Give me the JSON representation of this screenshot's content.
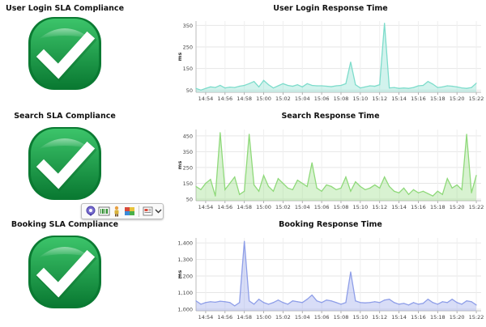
{
  "panels": [
    {
      "sla_title": "User Login SLA Compliance",
      "chart_title": "User Login Response Time",
      "status": "compliant",
      "icon": "checkmark-icon"
    },
    {
      "sla_title": "Search SLA Compliance",
      "chart_title": "Search Response Time",
      "status": "compliant",
      "icon": "checkmark-icon"
    },
    {
      "sla_title": "Booking SLA Compliance",
      "chart_title": "Booking Response Time",
      "status": "compliant",
      "icon": "checkmark-icon"
    }
  ],
  "toolbar": {
    "icons": [
      "map-pin-icon",
      "barcode-icon",
      "person-icon",
      "puzzle-icon",
      "image-settings-icon",
      "chevron-down-icon"
    ]
  },
  "colors": {
    "badge_green": "#12a046",
    "badge_green_dark": "#0a7a32",
    "login_series": "#7ddccb",
    "search_series": "#8fd97a",
    "booking_series": "#8e9ee8"
  },
  "chart_data": [
    {
      "type": "area",
      "ylabel": "ms",
      "ylim": [
        40,
        370
      ],
      "yticks": [
        50,
        150,
        250,
        350
      ],
      "ytick_labels": [
        "50",
        "150",
        "250",
        "350"
      ],
      "xlim": [
        0,
        29.5
      ],
      "xticks": [
        1,
        3,
        5,
        7,
        9,
        11,
        13,
        15,
        17,
        19,
        21,
        23,
        25,
        27,
        29
      ],
      "xtick_labels": [
        "14:54",
        "14:56",
        "14:58",
        "15:00",
        "15:02",
        "15:04",
        "15:06",
        "15:08",
        "15:10",
        "15:12",
        "15:14",
        "15:16",
        "15:18",
        "15:20",
        "15:22"
      ],
      "color": "#7ddccb",
      "x": [
        0,
        0.5,
        1,
        1.5,
        2,
        2.5,
        3,
        3.5,
        4,
        4.5,
        5,
        5.5,
        6,
        6.5,
        7,
        7.5,
        8,
        8.5,
        9,
        9.5,
        10,
        10.5,
        11,
        11.5,
        12,
        12.5,
        13,
        13.5,
        14,
        14.5,
        15,
        15.5,
        16,
        16.5,
        17,
        17.5,
        18,
        18.5,
        19,
        19.5,
        20,
        20.5,
        21,
        21.5,
        22,
        22.5,
        23,
        23.5,
        24,
        24.5,
        25,
        25.5,
        26,
        26.5,
        27,
        27.5,
        28,
        28.5,
        29
      ],
      "values": [
        58,
        50,
        58,
        65,
        62,
        72,
        60,
        64,
        62,
        68,
        72,
        80,
        90,
        65,
        95,
        75,
        60,
        70,
        80,
        72,
        68,
        75,
        65,
        80,
        72,
        70,
        70,
        68,
        66,
        70,
        72,
        80,
        180,
        75,
        60,
        65,
        70,
        68,
        75,
        360,
        60,
        62,
        58,
        60,
        58,
        62,
        70,
        72,
        90,
        78,
        62,
        65,
        70,
        68,
        65,
        60,
        58,
        62,
        82
      ]
    },
    {
      "type": "area",
      "ylabel": "ms",
      "ylim": [
        40,
        490
      ],
      "yticks": [
        50,
        150,
        250,
        350,
        450
      ],
      "ytick_labels": [
        "50",
        "150",
        "250",
        "350",
        "450"
      ],
      "xlim": [
        0,
        29.5
      ],
      "xticks": [
        1,
        3,
        5,
        7,
        9,
        11,
        13,
        15,
        17,
        19,
        21,
        23,
        25,
        27,
        29
      ],
      "xtick_labels": [
        "14:54",
        "14:56",
        "14:58",
        "15:00",
        "15:02",
        "15:04",
        "15:06",
        "15:08",
        "15:10",
        "15:12",
        "15:14",
        "15:16",
        "15:18",
        "15:20",
        "15:22"
      ],
      "color": "#8fd97a",
      "x": [
        0,
        0.5,
        1,
        1.5,
        2,
        2.5,
        3,
        3.5,
        4,
        4.5,
        5,
        5.5,
        6,
        6.5,
        7,
        7.5,
        8,
        8.5,
        9,
        9.5,
        10,
        10.5,
        11,
        11.5,
        12,
        12.5,
        13,
        13.5,
        14,
        14.5,
        15,
        15.5,
        16,
        16.5,
        17,
        17.5,
        18,
        18.5,
        19,
        19.5,
        20,
        20.5,
        21,
        21.5,
        22,
        22.5,
        23,
        23.5,
        24,
        24.5,
        25,
        25.5,
        26,
        26.5,
        27,
        27.5,
        28,
        28.5,
        29
      ],
      "values": [
        130,
        110,
        150,
        175,
        70,
        470,
        110,
        150,
        190,
        80,
        100,
        460,
        140,
        100,
        200,
        130,
        100,
        180,
        150,
        120,
        110,
        170,
        150,
        130,
        280,
        120,
        100,
        140,
        130,
        110,
        120,
        190,
        100,
        160,
        130,
        110,
        120,
        140,
        120,
        190,
        130,
        100,
        90,
        120,
        80,
        110,
        90,
        100,
        85,
        70,
        100,
        80,
        180,
        120,
        140,
        110,
        460,
        90,
        200
      ]
    },
    {
      "type": "area",
      "ylabel": "ms",
      "ylim": [
        990,
        1430
      ],
      "yticks": [
        1000,
        1100,
        1200,
        1300,
        1400
      ],
      "ytick_labels": [
        "1,000",
        "1,100",
        "1,200",
        "1,300",
        "1,400"
      ],
      "xlim": [
        0,
        29.5
      ],
      "xticks": [
        1,
        3,
        5,
        7,
        9,
        11,
        13,
        15,
        17,
        19,
        21,
        23,
        25,
        27,
        29
      ],
      "xtick_labels": [
        "14:54",
        "14:56",
        "14:58",
        "15:00",
        "15:02",
        "15:04",
        "15:06",
        "15:08",
        "15:10",
        "15:12",
        "15:14",
        "15:16",
        "15:18",
        "15:20",
        "15:22"
      ],
      "color": "#8e9ee8",
      "x": [
        0,
        0.5,
        1,
        1.5,
        2,
        2.5,
        3,
        3.5,
        4,
        4.5,
        5,
        5.5,
        6,
        6.5,
        7,
        7.5,
        8,
        8.5,
        9,
        9.5,
        10,
        10.5,
        11,
        11.5,
        12,
        12.5,
        13,
        13.5,
        14,
        14.5,
        15,
        15.5,
        16,
        16.5,
        17,
        17.5,
        18,
        18.5,
        19,
        19.5,
        20,
        20.5,
        21,
        21.5,
        22,
        22.5,
        23,
        23.5,
        24,
        24.5,
        25,
        25.5,
        26,
        26.5,
        27,
        27.5,
        28,
        28.5,
        29
      ],
      "values": [
        1050,
        1030,
        1040,
        1045,
        1042,
        1048,
        1045,
        1040,
        1020,
        1040,
        1410,
        1050,
        1030,
        1060,
        1040,
        1030,
        1040,
        1055,
        1040,
        1030,
        1050,
        1045,
        1040,
        1060,
        1085,
        1050,
        1040,
        1055,
        1050,
        1040,
        1030,
        1040,
        1225,
        1050,
        1040,
        1038,
        1040,
        1045,
        1040,
        1055,
        1060,
        1040,
        1030,
        1035,
        1025,
        1040,
        1030,
        1035,
        1060,
        1040,
        1030,
        1045,
        1040,
        1060,
        1040,
        1030,
        1050,
        1045,
        1025
      ]
    }
  ]
}
